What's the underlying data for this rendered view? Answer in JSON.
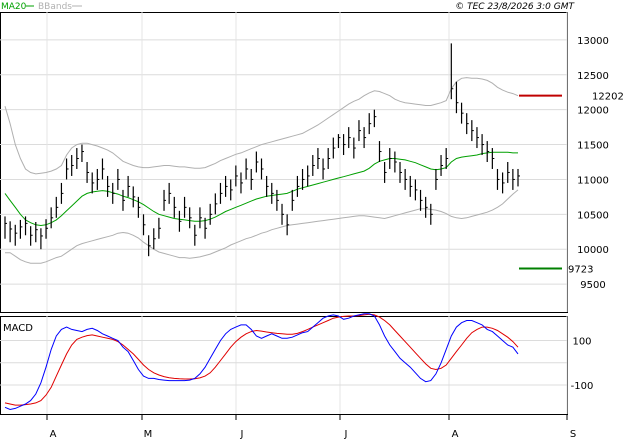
{
  "legend": {
    "ma_label": "MA20",
    "bb_label": "BBands"
  },
  "credit": "© TEC 23/8/2026 3:0 GMT",
  "colors": {
    "ma": "#00a000",
    "bb": "#b0b0b0",
    "price": "#000000",
    "macd": "#0000ff",
    "signal": "#e00000",
    "upper_ref": "#c00000",
    "lower_ref": "#008000"
  },
  "chart_data": [
    {
      "type": "ohlc",
      "x_ticks": [
        "A",
        "M",
        "J",
        "J",
        "A",
        "S"
      ],
      "y_ticks": [
        "13000",
        "12500",
        "12000",
        "11500",
        "11000",
        "10500",
        "10000",
        "9500"
      ],
      "ylim": [
        9100,
        13400
      ],
      "grid": true,
      "legend_position": "top-left",
      "closes": [
        10370,
        10290,
        10230,
        10320,
        10370,
        10200,
        10280,
        10190,
        10300,
        10450,
        10600,
        10800,
        11150,
        11200,
        11300,
        11400,
        11100,
        10950,
        11000,
        11150,
        10900,
        10800,
        11000,
        10700,
        10900,
        10750,
        10600,
        10350,
        10050,
        10150,
        10300,
        10700,
        10800,
        10600,
        10400,
        10600,
        10450,
        10200,
        10450,
        10300,
        10500,
        10650,
        10800,
        10900,
        10850,
        11050,
        10950,
        11150,
        11000,
        11250,
        11150,
        10900,
        10800,
        10700,
        10500,
        10350,
        10700,
        10900,
        11000,
        11050,
        11200,
        11300,
        11150,
        11300,
        11450,
        11600,
        11500,
        11600,
        11450,
        11700,
        11600,
        11800,
        11900,
        11400,
        11100,
        11300,
        11250,
        11100,
        11000,
        10900,
        10850,
        10700,
        10600,
        10500,
        11000,
        11200,
        11300,
        12300,
        12100,
        11950,
        11800,
        11700,
        11600,
        11500,
        11400,
        11300,
        11000,
        10950,
        11100,
        11000,
        11050
      ],
      "highs": [
        10470,
        10400,
        10350,
        10420,
        10470,
        10330,
        10390,
        10300,
        10430,
        10600,
        10750,
        10950,
        11300,
        11350,
        11450,
        11500,
        11250,
        11100,
        11150,
        11300,
        11050,
        10950,
        11150,
        10850,
        11050,
        10900,
        10750,
        10500,
        10200,
        10300,
        10450,
        10850,
        10950,
        10750,
        10550,
        10750,
        10600,
        10350,
        10600,
        10450,
        10650,
        10800,
        10950,
        11050,
        11000,
        11200,
        11100,
        11300,
        11150,
        11400,
        11300,
        11050,
        10950,
        10850,
        10650,
        10500,
        10850,
        11050,
        11150,
        11200,
        11350,
        11450,
        11300,
        11450,
        11600,
        11650,
        11650,
        11750,
        11600,
        11850,
        11750,
        11950,
        12000,
        11550,
        11250,
        11450,
        11400,
        11250,
        11150,
        11050,
        11000,
        10850,
        10750,
        10650,
        11150,
        11350,
        11450,
        12950,
        12400,
        12100,
        11950,
        11850,
        11750,
        11650,
        11550,
        11450,
        11150,
        11100,
        11250,
        11150,
        11150
      ],
      "lows": [
        10150,
        10100,
        10050,
        10150,
        10200,
        10050,
        10100,
        10000,
        10150,
        10300,
        10450,
        10650,
        11000,
        11050,
        11150,
        11250,
        10950,
        10800,
        10850,
        11000,
        10750,
        10650,
        10850,
        10550,
        10750,
        10600,
        10450,
        10200,
        9900,
        10000,
        10150,
        10550,
        10650,
        10450,
        10250,
        10450,
        10300,
        10050,
        10300,
        10150,
        10350,
        10500,
        10650,
        10750,
        10700,
        10900,
        10800,
        11000,
        10850,
        11100,
        11000,
        10750,
        10650,
        10550,
        10350,
        10200,
        10550,
        10750,
        10850,
        10900,
        11050,
        11150,
        11000,
        11150,
        11300,
        11450,
        11350,
        11450,
        11300,
        11550,
        11450,
        11650,
        11750,
        11250,
        10950,
        11150,
        11100,
        10950,
        10850,
        10750,
        10700,
        10550,
        10450,
        10350,
        10850,
        11050,
        11150,
        12150,
        11950,
        11800,
        11650,
        11550,
        11450,
        11350,
        11250,
        11150,
        10850,
        10800,
        10950,
        10850,
        10900
      ],
      "ma20": [
        10800,
        10700,
        10600,
        10500,
        10420,
        10380,
        10350,
        10340,
        10350,
        10380,
        10420,
        10480,
        10550,
        10620,
        10690,
        10760,
        10800,
        10820,
        10830,
        10840,
        10830,
        10810,
        10790,
        10760,
        10740,
        10710,
        10680,
        10640,
        10590,
        10540,
        10500,
        10480,
        10460,
        10440,
        10430,
        10420,
        10410,
        10400,
        10400,
        10410,
        10430,
        10460,
        10500,
        10540,
        10570,
        10600,
        10630,
        10660,
        10690,
        10720,
        10740,
        10760,
        10770,
        10780,
        10790,
        10800,
        10830,
        10860,
        10880,
        10900,
        10920,
        10940,
        10960,
        10980,
        11000,
        11020,
        11040,
        11060,
        11080,
        11100,
        11120,
        11160,
        11220,
        11260,
        11280,
        11300,
        11300,
        11290,
        11280,
        11260,
        11240,
        11210,
        11180,
        11150,
        11140,
        11150,
        11170,
        11250,
        11300,
        11320,
        11330,
        11340,
        11350,
        11370,
        11380,
        11390,
        11390,
        11390,
        11390,
        11380,
        11380
      ],
      "bb_upper": [
        12050,
        11800,
        11500,
        11300,
        11150,
        11100,
        11080,
        11090,
        11100,
        11120,
        11150,
        11200,
        11350,
        11450,
        11500,
        11520,
        11520,
        11500,
        11480,
        11450,
        11420,
        11380,
        11320,
        11260,
        11230,
        11200,
        11180,
        11170,
        11170,
        11180,
        11190,
        11200,
        11200,
        11190,
        11180,
        11180,
        11170,
        11160,
        11160,
        11170,
        11200,
        11230,
        11270,
        11300,
        11330,
        11360,
        11380,
        11410,
        11440,
        11470,
        11500,
        11520,
        11540,
        11560,
        11580,
        11600,
        11620,
        11640,
        11660,
        11700,
        11740,
        11780,
        11830,
        11880,
        11930,
        11980,
        12030,
        12080,
        12120,
        12150,
        12200,
        12240,
        12270,
        12260,
        12230,
        12200,
        12150,
        12120,
        12100,
        12090,
        12080,
        12070,
        12060,
        12060,
        12080,
        12100,
        12130,
        12300,
        12400,
        12450,
        12460,
        12450,
        12450,
        12440,
        12420,
        12380,
        12320,
        12280,
        12250,
        12230,
        12200
      ],
      "bb_lower": [
        9950,
        9950,
        9900,
        9850,
        9820,
        9800,
        9800,
        9800,
        9820,
        9850,
        9880,
        9900,
        9950,
        10000,
        10050,
        10080,
        10100,
        10120,
        10140,
        10160,
        10180,
        10200,
        10230,
        10240,
        10230,
        10200,
        10160,
        10100,
        10050,
        10000,
        9960,
        9940,
        9920,
        9900,
        9880,
        9880,
        9870,
        9880,
        9890,
        9910,
        9930,
        9960,
        9990,
        10020,
        10060,
        10090,
        10120,
        10150,
        10170,
        10200,
        10230,
        10250,
        10280,
        10300,
        10320,
        10340,
        10350,
        10360,
        10370,
        10380,
        10390,
        10400,
        10410,
        10420,
        10430,
        10440,
        10450,
        10460,
        10470,
        10480,
        10480,
        10470,
        10460,
        10450,
        10440,
        10460,
        10480,
        10500,
        10520,
        10540,
        10560,
        10580,
        10580,
        10570,
        10560,
        10540,
        10510,
        10470,
        10450,
        10440,
        10450,
        10470,
        10490,
        10510,
        10530,
        10560,
        10600,
        10650,
        10720,
        10790,
        10850
      ]
    },
    {
      "type": "line",
      "title": "MACD",
      "x_ticks": [
        "A",
        "M",
        "J",
        "J",
        "A",
        "S"
      ],
      "y_ticks": [
        "100",
        "-100"
      ],
      "ylim": [
        -230,
        210
      ],
      "series": [
        {
          "name": "MACD",
          "values": [
            -200,
            -210,
            -205,
            -195,
            -185,
            -170,
            -140,
            -90,
            -20,
            60,
            120,
            150,
            160,
            150,
            145,
            140,
            150,
            155,
            145,
            130,
            120,
            110,
            100,
            70,
            50,
            10,
            -30,
            -60,
            -70,
            -70,
            -75,
            -78,
            -80,
            -80,
            -80,
            -80,
            -78,
            -70,
            -50,
            -20,
            20,
            60,
            100,
            130,
            150,
            160,
            170,
            170,
            150,
            120,
            110,
            120,
            130,
            120,
            110,
            110,
            115,
            125,
            135,
            140,
            160,
            180,
            200,
            210,
            215,
            210,
            195,
            200,
            210,
            215,
            220,
            220,
            210,
            170,
            120,
            80,
            50,
            20,
            0,
            -20,
            -45,
            -70,
            -85,
            -80,
            -50,
            0,
            60,
            120,
            160,
            180,
            190,
            190,
            180,
            170,
            150,
            140,
            120,
            100,
            80,
            70,
            40
          ]
        },
        {
          "name": "Signal",
          "values": [
            -180,
            -185,
            -190,
            -190,
            -188,
            -185,
            -180,
            -170,
            -145,
            -110,
            -60,
            -10,
            40,
            80,
            105,
            115,
            122,
            125,
            120,
            115,
            110,
            105,
            95,
            80,
            60,
            40,
            15,
            -10,
            -30,
            -45,
            -55,
            -62,
            -67,
            -70,
            -72,
            -73,
            -73,
            -72,
            -68,
            -60,
            -45,
            -20,
            10,
            40,
            70,
            95,
            115,
            130,
            140,
            145,
            142,
            138,
            135,
            132,
            130,
            128,
            128,
            132,
            140,
            150,
            160,
            170,
            180,
            190,
            200,
            205,
            208,
            210,
            210,
            212,
            215,
            218,
            215,
            205,
            190,
            170,
            145,
            120,
            95,
            70,
            45,
            20,
            -5,
            -25,
            -30,
            -25,
            -10,
            20,
            50,
            80,
            110,
            135,
            150,
            160,
            160,
            155,
            145,
            130,
            115,
            95,
            70
          ]
        }
      ]
    }
  ],
  "ref_levels": {
    "upper": "12202",
    "lower": "9723"
  }
}
